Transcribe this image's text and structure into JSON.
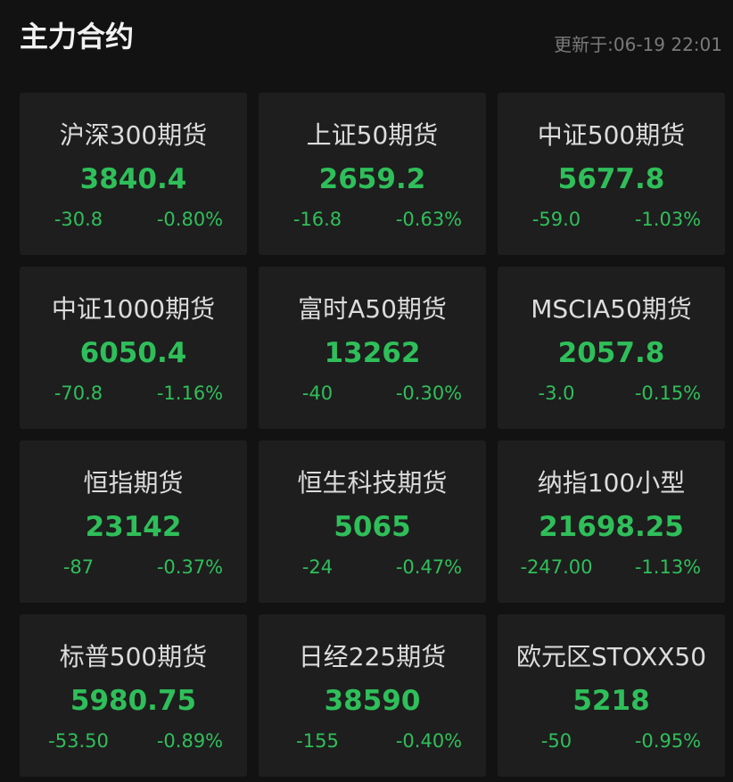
{
  "header": {
    "title": "主力合约",
    "updated": "更新于:06-19 22:01"
  },
  "cards": [
    {
      "name": "沪深300期货",
      "price": "3840.4",
      "change": "-30.8",
      "percent": "-0.80%"
    },
    {
      "name": "上证50期货",
      "price": "2659.2",
      "change": "-16.8",
      "percent": "-0.63%"
    },
    {
      "name": "中证500期货",
      "price": "5677.8",
      "change": "-59.0",
      "percent": "-1.03%"
    },
    {
      "name": "中证1000期货",
      "price": "6050.4",
      "change": "-70.8",
      "percent": "-1.16%"
    },
    {
      "name": "富时A50期货",
      "price": "13262",
      "change": "-40",
      "percent": "-0.30%"
    },
    {
      "name": "MSCIA50期货",
      "price": "2057.8",
      "change": "-3.0",
      "percent": "-0.15%"
    },
    {
      "name": "恒指期货",
      "price": "23142",
      "change": "-87",
      "percent": "-0.37%"
    },
    {
      "name": "恒生科技期货",
      "price": "5065",
      "change": "-24",
      "percent": "-0.47%"
    },
    {
      "name": "纳指100小型",
      "price": "21698.25",
      "change": "-247.00",
      "percent": "-1.13%"
    },
    {
      "name": "标普500期货",
      "price": "5980.75",
      "change": "-53.50",
      "percent": "-0.89%"
    },
    {
      "name": "日经225期货",
      "price": "38590",
      "change": "-155",
      "percent": "-0.40%"
    },
    {
      "name": "欧元区STOXX50",
      "price": "5218",
      "change": "-50",
      "percent": "-0.95%"
    }
  ]
}
